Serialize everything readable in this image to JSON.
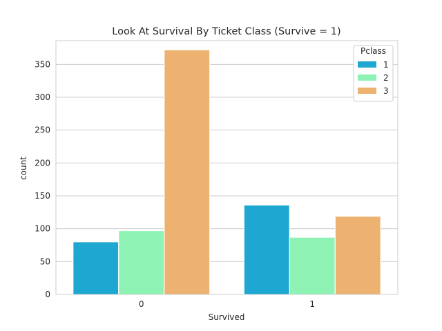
{
  "chart_data": {
    "type": "bar",
    "title": "Look At Survival By Ticket Class (Survive = 1)",
    "xlabel": "Survived",
    "ylabel": "count",
    "categories": [
      "0",
      "1"
    ],
    "series": [
      {
        "name": "1",
        "values": [
          80,
          136
        ],
        "color": "#1ea7d1"
      },
      {
        "name": "2",
        "values": [
          97,
          87
        ],
        "color": "#8ef2b5"
      },
      {
        "name": "3",
        "values": [
          372,
          119
        ],
        "color": "#edb26f"
      }
    ],
    "ylim": [
      0,
      386
    ],
    "yticks": [
      0,
      50,
      100,
      150,
      200,
      250,
      300,
      350
    ],
    "grid": true,
    "legend": {
      "title": "Pclass",
      "placement": "top-right"
    }
  }
}
